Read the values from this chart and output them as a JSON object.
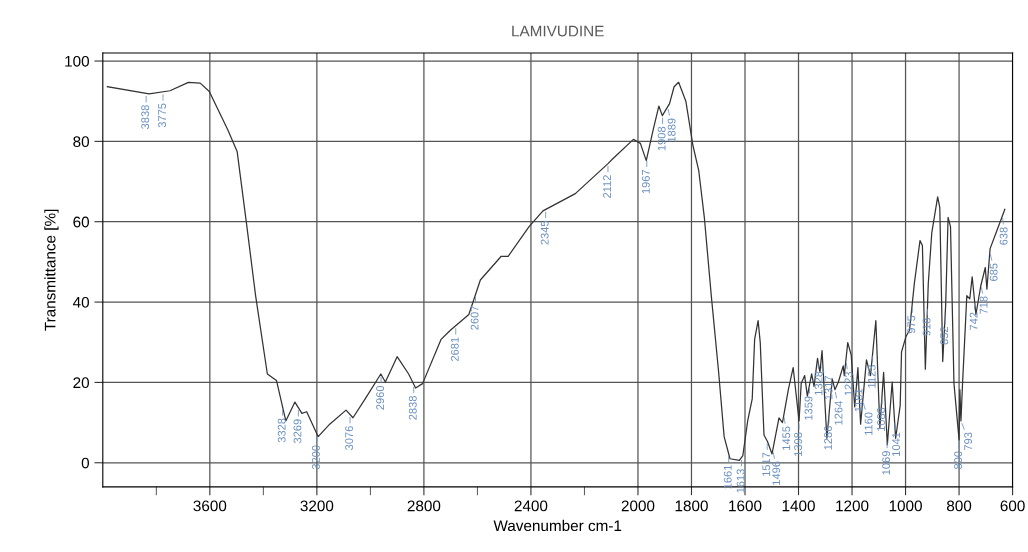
{
  "chart_data": {
    "type": "line",
    "title": "LAMIVUDINE",
    "xlabel": "Wavenumber cm-1",
    "ylabel": "Transmittance [%]",
    "xlim": [
      4000,
      600
    ],
    "ylim": [
      -6,
      102
    ],
    "xticks": [
      {
        "value": 3800,
        "label": null
      },
      3600,
      {
        "value": 3400,
        "label": null
      },
      3200,
      {
        "value": 3000,
        "label": null
      },
      2800,
      {
        "value": 2600,
        "label": null
      },
      2400,
      {
        "value": 2200,
        "label": null
      },
      2000,
      1800,
      1600,
      1400,
      1200,
      1000,
      800,
      600
    ],
    "yticks": [
      0,
      20,
      40,
      60,
      80,
      100
    ],
    "grid": true,
    "legend": false,
    "marker": "none",
    "line_style": "solid",
    "series": [
      {
        "color": "#333333",
        "x": [
          3983,
          3827,
          3749,
          3680,
          3636,
          3602,
          3533,
          3498,
          3463,
          3429,
          3385,
          3351,
          3316,
          3282,
          3256,
          3238,
          3195,
          3152,
          3091,
          3065,
          3013,
          2961,
          2944,
          2900,
          2857,
          2831,
          2805,
          2736,
          2701,
          2632,
          2589,
          2511,
          2485,
          2407,
          2355,
          2234,
          2113,
          2095,
          2017,
          1991,
          1969,
          1943,
          1922,
          1909,
          1882,
          1865,
          1848,
          1821,
          1795,
          1773,
          1752,
          1726,
          1699,
          1678,
          1656,
          1621,
          1608,
          1590,
          1573,
          1564,
          1551,
          1543,
          1529,
          1516,
          1499,
          1473,
          1460,
          1438,
          1420,
          1398,
          1390,
          1377,
          1367,
          1351,
          1342,
          1329,
          1320,
          1312,
          1294,
          1274,
          1264,
          1251,
          1233,
          1229,
          1216,
          1203,
          1190,
          1178,
          1168,
          1146,
          1131,
          1111,
          1096,
          1082,
          1068,
          1050,
          1037,
          1020,
          1015,
          998,
          985,
          967,
          946,
          937,
          926,
          915,
          902,
          880,
          872,
          861,
          850,
          841,
          832,
          819,
          800,
          797,
          793,
          787,
          771,
          760,
          751,
          737,
          719,
          702,
          696,
          684,
          662,
          629
        ],
        "values": [
          93.6,
          91.8,
          92.6,
          94.7,
          94.5,
          92.4,
          82.9,
          77.5,
          59.6,
          41.6,
          22.1,
          20.5,
          10.4,
          15.1,
          12.3,
          12.7,
          6.5,
          9.6,
          13.1,
          11.2,
          16.6,
          22.1,
          20.1,
          26.4,
          22.1,
          18.6,
          19.7,
          30.7,
          33.0,
          36.9,
          45.5,
          51.4,
          51.4,
          58.8,
          62.7,
          67.0,
          74.4,
          75.6,
          80.5,
          79.5,
          75.2,
          82.9,
          88.8,
          86.4,
          89.4,
          93.6,
          94.7,
          90.0,
          79.1,
          72.8,
          61.1,
          41.6,
          22.9,
          6.5,
          1.0,
          0.6,
          1.8,
          10.4,
          15.9,
          30.7,
          35.4,
          29.9,
          6.9,
          5.3,
          2.2,
          11.2,
          10.0,
          18.2,
          23.7,
          10.4,
          19.7,
          21.7,
          16.6,
          22.1,
          19.0,
          26.0,
          22.5,
          27.9,
          6.1,
          20.9,
          18.2,
          20.1,
          24.1,
          21.7,
          29.9,
          26.8,
          13.9,
          23.7,
          9.6,
          25.6,
          21.7,
          35.4,
          8.8,
          22.5,
          4.5,
          20.1,
          6.1,
          14.3,
          27.6,
          31.5,
          33.0,
          44.7,
          55.3,
          54.1,
          23.3,
          44.7,
          57.2,
          66.2,
          63.5,
          25.2,
          39.3,
          61.1,
          58.8,
          19.7,
          5.7,
          18.2,
          10.4,
          19.7,
          41.6,
          40.8,
          46.3,
          36.9,
          44.0,
          48.6,
          43.2,
          53.3,
          57.2,
          63.1
        ]
      }
    ],
    "annotations": [
      {
        "text": "3838",
        "x": 3838,
        "y": 91.9
      },
      {
        "text": "3775",
        "x": 3775,
        "y": 92.3
      },
      {
        "text": "3328",
        "x": 3328,
        "y": 13.9
      },
      {
        "text": "3269",
        "x": 3269,
        "y": 13.7
      },
      {
        "text": "3200",
        "x": 3200,
        "y": 7.2
      },
      {
        "text": "3076",
        "x": 3076,
        "y": 12.0
      },
      {
        "text": "2960",
        "x": 2960,
        "y": 22.0
      },
      {
        "text": "2838",
        "x": 2838,
        "y": 19.5
      },
      {
        "text": "2681",
        "x": 2681,
        "y": 34.1
      },
      {
        "text": "2607",
        "x": 2607,
        "y": 41.9
      },
      {
        "text": "2345",
        "x": 2345,
        "y": 63.1
      },
      {
        "text": "2112",
        "x": 2112,
        "y": 74.5
      },
      {
        "text": "1967",
        "x": 1967,
        "y": 75.8
      },
      {
        "text": "1908",
        "x": 1908,
        "y": 86.5
      },
      {
        "text": "1889",
        "x": 1889,
        "y": 88.6
      },
      {
        "text": "1661",
        "x": 1661,
        "y": 2.3
      },
      {
        "text": "1613",
        "x": 1613,
        "y": 1.3
      },
      {
        "text": "1517",
        "x": 1517,
        "y": 5.4
      },
      {
        "text": "1496",
        "x": 1496,
        "y": 3.2
      },
      {
        "text": "1455",
        "x": 1455,
        "y": 11.9
      },
      {
        "text": "1398",
        "x": 1398,
        "y": 10.4
      },
      {
        "text": "1359",
        "x": 1359,
        "y": 19.4
      },
      {
        "text": "1328",
        "x": 1328,
        "y": 25.6
      },
      {
        "text": "1317",
        "x": 1317,
        "y": 24.5
      },
      {
        "text": "1286",
        "x": 1286,
        "y": 12.0
      },
      {
        "text": "1264",
        "x": 1264,
        "y": 18.2
      },
      {
        "text": "1223",
        "x": 1223,
        "y": 25.5
      },
      {
        "text": "1181",
        "x": 1181,
        "y": 21.3
      },
      {
        "text": "1160",
        "x": 1160,
        "y": 15.4
      },
      {
        "text": "1123",
        "x": 1123,
        "y": 27.2
      },
      {
        "text": "1088",
        "x": 1088,
        "y": 16.6
      },
      {
        "text": "1069",
        "x": 1069,
        "y": 5.8
      },
      {
        "text": "1041",
        "x": 1041,
        "y": 10.4
      },
      {
        "text": "975",
        "x": 975,
        "y": 39.5
      },
      {
        "text": "918",
        "x": 918,
        "y": 38.9
      },
      {
        "text": "852",
        "x": 852,
        "y": 36.7
      },
      {
        "text": "800",
        "x": 800,
        "y": 5.7
      },
      {
        "text": "793",
        "x": 793,
        "y": 10.4
      },
      {
        "text": "742",
        "x": 742,
        "y": 40.3
      },
      {
        "text": "718",
        "x": 718,
        "y": 44.3
      },
      {
        "text": "685",
        "x": 685,
        "y": 52.5
      },
      {
        "text": "638",
        "x": 638,
        "y": 61.5
      }
    ]
  }
}
